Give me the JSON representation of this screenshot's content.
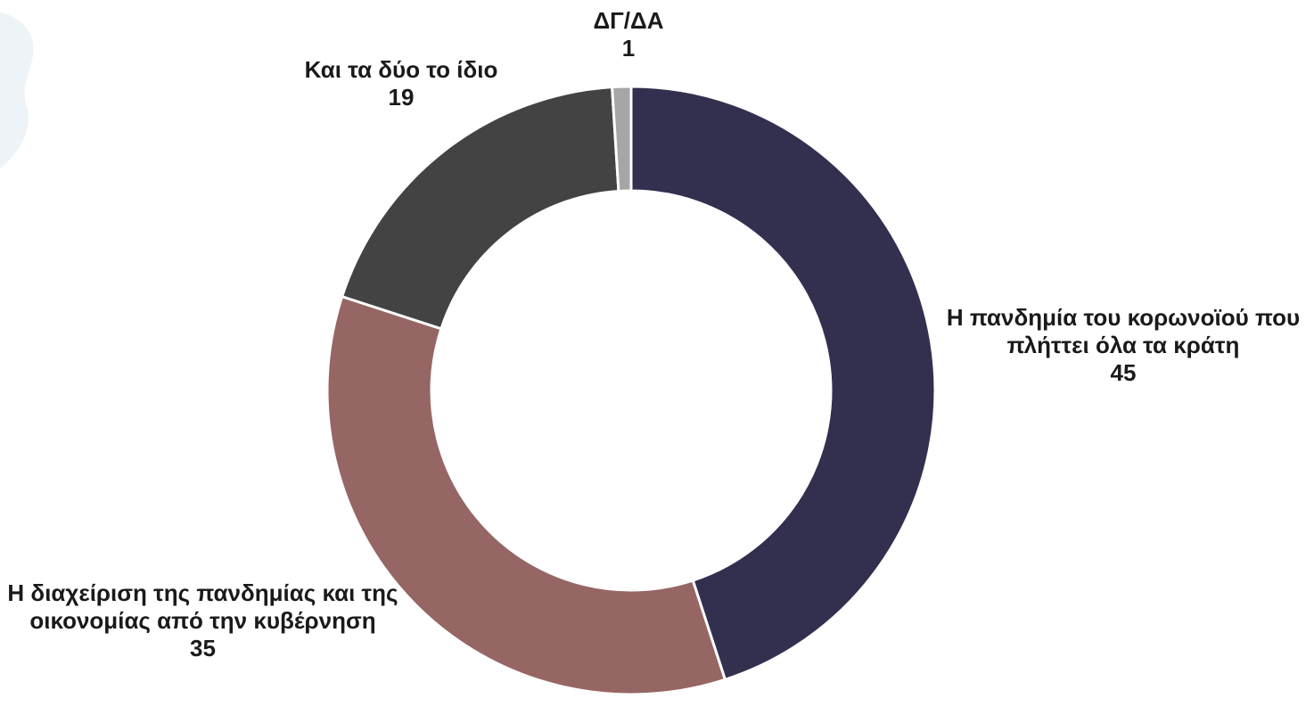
{
  "chart_data": {
    "type": "pie",
    "donut": true,
    "title": "",
    "slices": [
      {
        "name": "Η πανδημία του κορωνοϊού που πλήττει όλα τα κράτη",
        "value": 45,
        "value_label": "45",
        "color": "#332f4f"
      },
      {
        "name": "Η διαχείριση της πανδημίας και της οικονομίας από την κυβέρνηση",
        "value": 35,
        "value_label": "35",
        "color": "#966664"
      },
      {
        "name": "Και τα δύο το ίδιο",
        "value": 19,
        "value_label": "19",
        "color": "#434343"
      },
      {
        "name": "ΔΓ/ΔΑ",
        "value": 1,
        "value_label": "1",
        "color": "#a6a6a6"
      }
    ],
    "start": "12 o'clock",
    "direction": "clockwise",
    "legend": "none",
    "data_labels": "outside"
  }
}
